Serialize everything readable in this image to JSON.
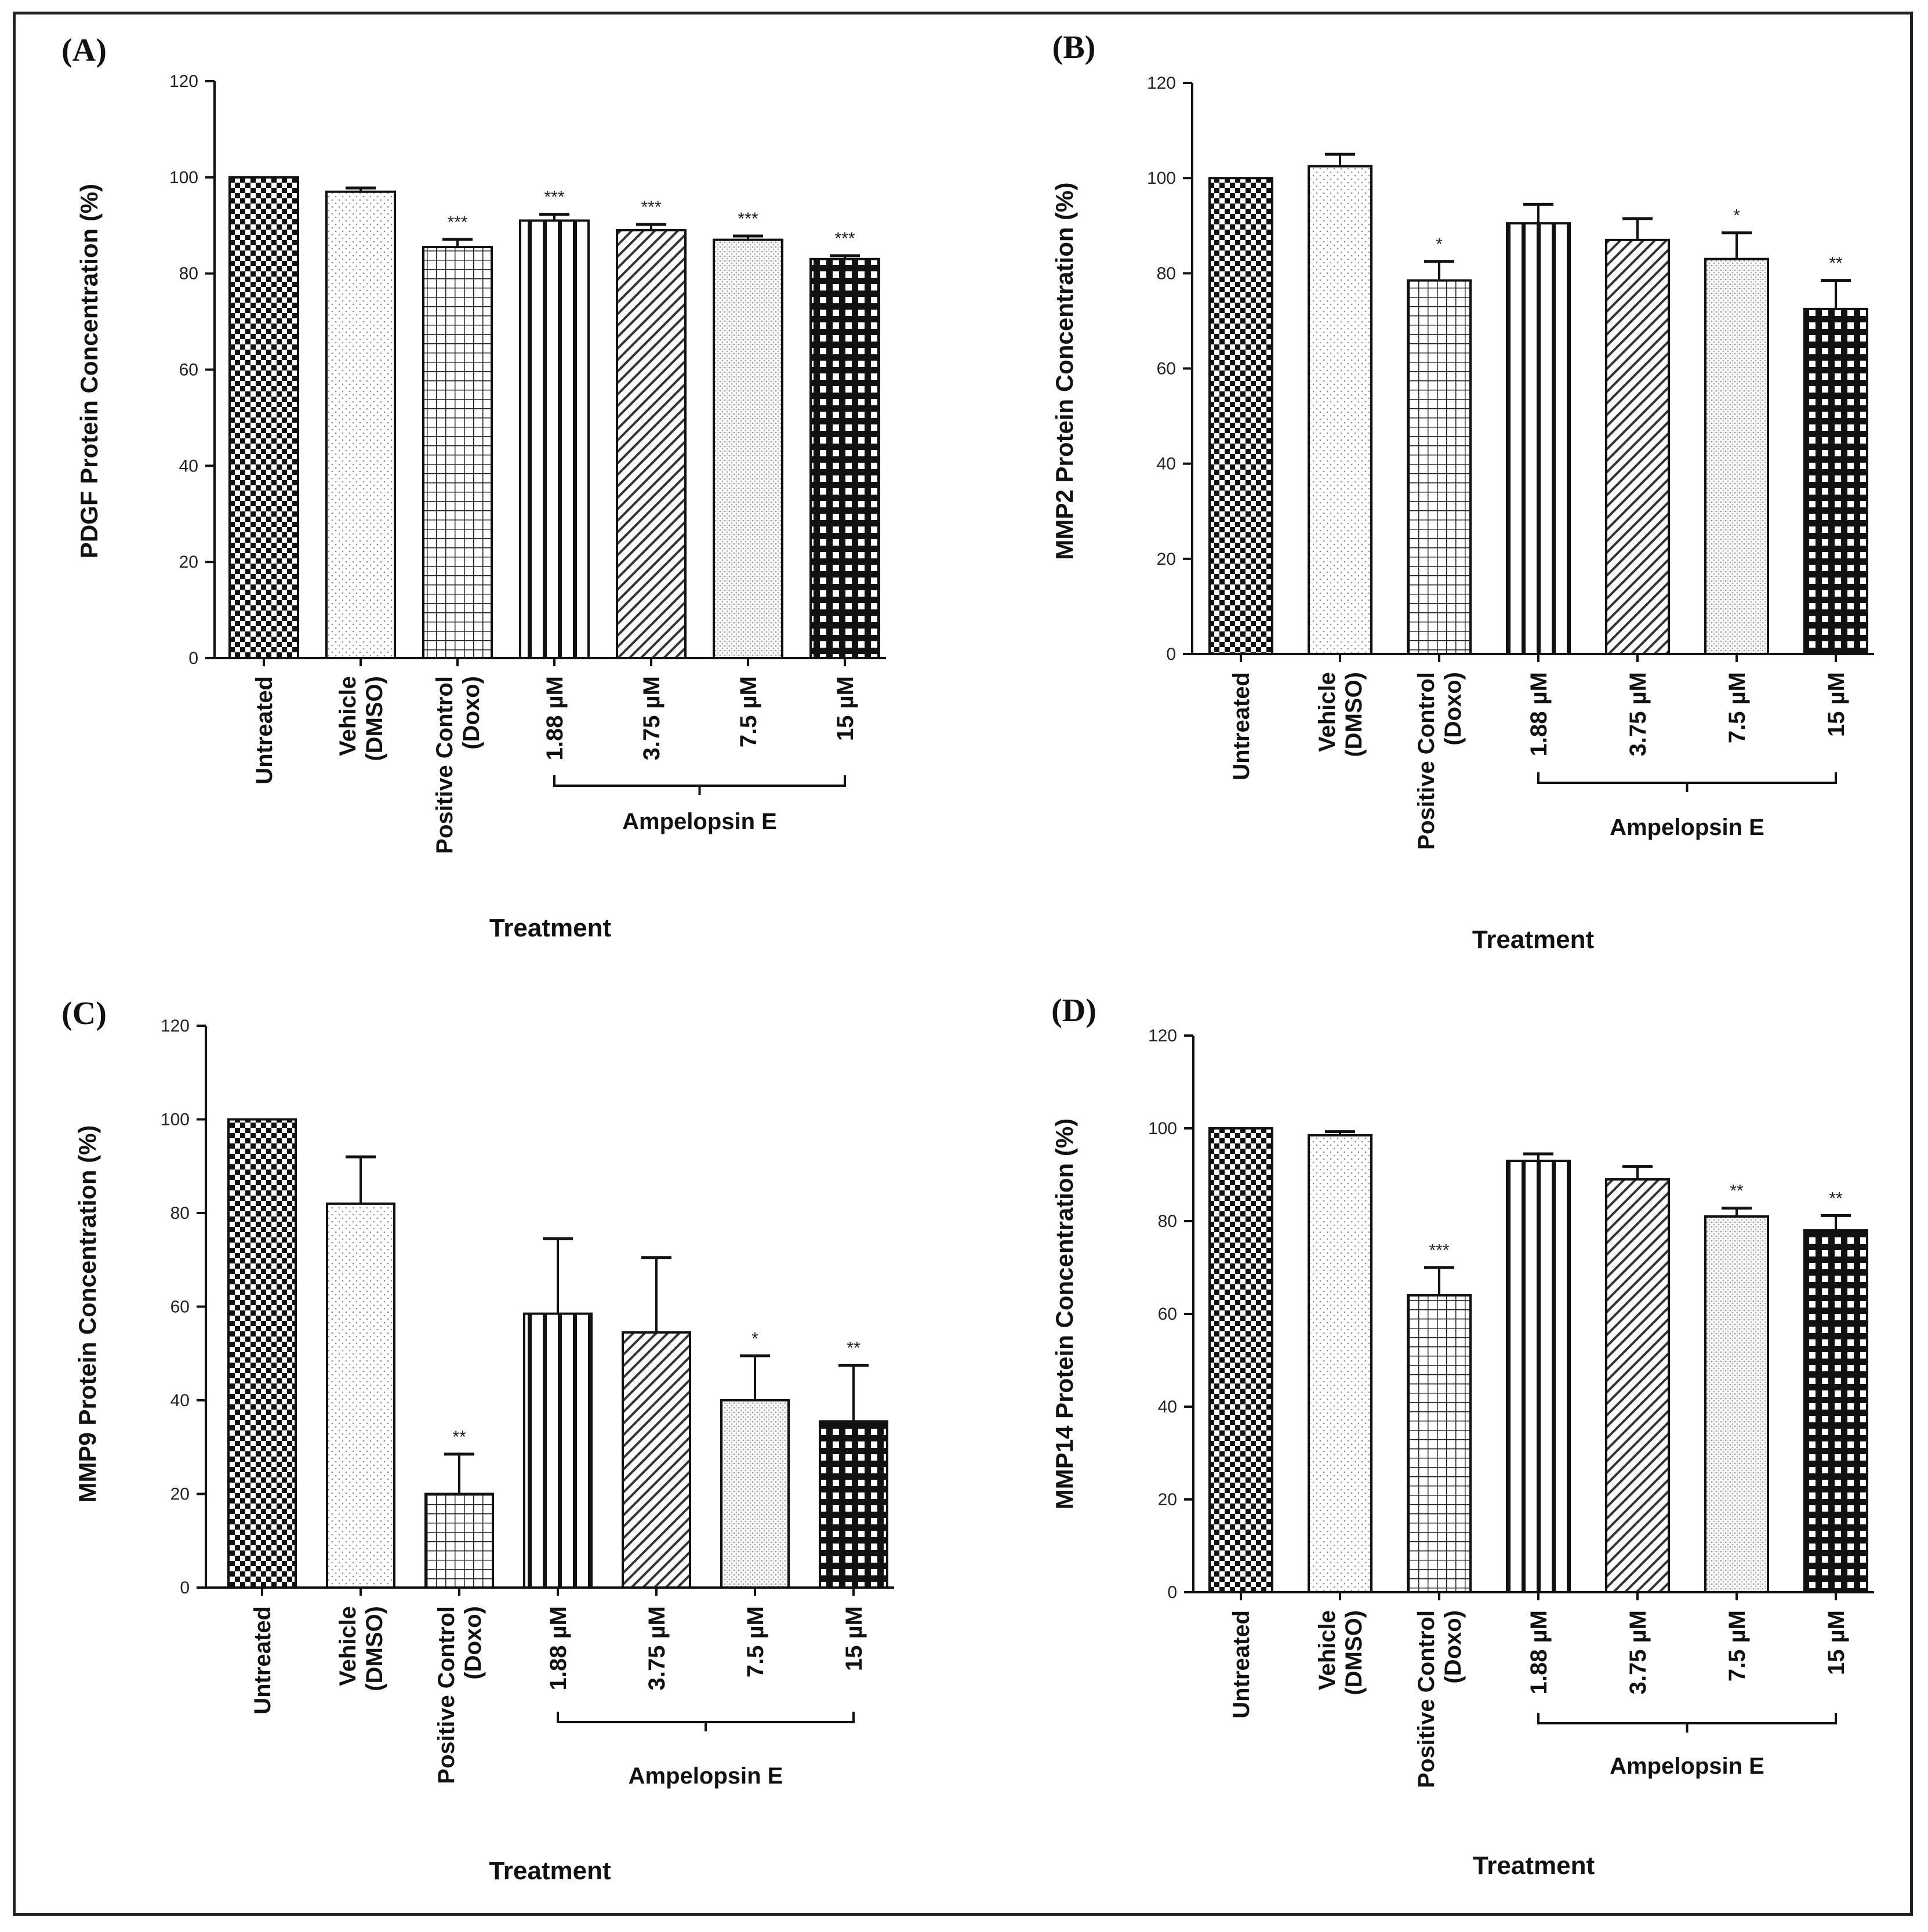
{
  "figure": {
    "colors": {
      "stroke": "#111111",
      "background": "#ffffff"
    },
    "panels": [
      {
        "panel_label": "(A)",
        "chart_data": {
          "type": "bar",
          "title": "",
          "ylabel": "PDGF Protein Concentration (%)",
          "xlabel": "Treatment",
          "ylim": [
            0,
            120
          ],
          "yticks": [
            0,
            20,
            40,
            60,
            80,
            100,
            120
          ],
          "group_label": "Ampelopsin E",
          "categories": [
            [
              "Untreated"
            ],
            [
              "Vehicle",
              "(DMSO)"
            ],
            [
              "Positive Control",
              "(Doxo)"
            ],
            [
              "1.88 µM"
            ],
            [
              "3.75 µM"
            ],
            [
              "7.5 µM"
            ],
            [
              "15 µM"
            ]
          ],
          "patterns": [
            "checker",
            "dots",
            "grid",
            "vlines",
            "diag",
            "fine",
            "bigcheck"
          ],
          "values": [
            100,
            97,
            85.5,
            91,
            89,
            87,
            83
          ],
          "errors": [
            0,
            0.8,
            1.6,
            1.3,
            1.2,
            0.8,
            0.7
          ],
          "significance": [
            "",
            "",
            "***",
            "***",
            "***",
            "***",
            "***"
          ]
        }
      },
      {
        "panel_label": "(B)",
        "chart_data": {
          "type": "bar",
          "title": "",
          "ylabel": "MMP2 Protein Concentration (%)",
          "xlabel": "Treatment",
          "ylim": [
            0,
            120
          ],
          "yticks": [
            0,
            20,
            40,
            60,
            80,
            100,
            120
          ],
          "group_label": "Ampelopsin E",
          "categories": [
            [
              "Untreated"
            ],
            [
              "Vehicle",
              "(DMSO)"
            ],
            [
              "Positive Control",
              "(Doxo)"
            ],
            [
              "1.88 µM"
            ],
            [
              "3.75 µM"
            ],
            [
              "7.5 µM"
            ],
            [
              "15 µM"
            ]
          ],
          "patterns": [
            "checker",
            "dots",
            "grid",
            "vlines",
            "diag",
            "fine",
            "bigcheck"
          ],
          "values": [
            100,
            102.5,
            78.5,
            90.5,
            87,
            83,
            72.5
          ],
          "errors": [
            0,
            2.5,
            4,
            4,
            4.5,
            5.5,
            6
          ],
          "significance": [
            "",
            "",
            "*",
            "",
            "",
            "*",
            "**"
          ]
        }
      },
      {
        "panel_label": "(C)",
        "chart_data": {
          "type": "bar",
          "title": "",
          "ylabel": "MMP9 Protein Concentration (%)",
          "xlabel": "Treatment",
          "ylim": [
            0,
            120
          ],
          "yticks": [
            0,
            20,
            40,
            60,
            80,
            100,
            120
          ],
          "group_label": "Ampelopsin E",
          "categories": [
            [
              "Untreated"
            ],
            [
              "Vehicle",
              "(DMSO)"
            ],
            [
              "Positive Control",
              "(Doxo)"
            ],
            [
              "1.88 µM"
            ],
            [
              "3.75 µM"
            ],
            [
              "7.5 µM"
            ],
            [
              "15 µM"
            ]
          ],
          "patterns": [
            "checker",
            "dots",
            "grid",
            "vlines",
            "diag",
            "fine",
            "bigcheck"
          ],
          "values": [
            100,
            82,
            20,
            58.5,
            54.5,
            40,
            35.5
          ],
          "errors": [
            0,
            10,
            8.5,
            16,
            16,
            9.5,
            12
          ],
          "significance": [
            "",
            "",
            "**",
            "",
            "",
            "*",
            "**"
          ]
        }
      },
      {
        "panel_label": "(D)",
        "chart_data": {
          "type": "bar",
          "title": "",
          "ylabel": "MMP14 Protein Concentration (%)",
          "xlabel": "Treatment",
          "ylim": [
            0,
            120
          ],
          "yticks": [
            0,
            20,
            40,
            60,
            80,
            100,
            120
          ],
          "group_label": "Ampelopsin E",
          "categories": [
            [
              "Untreated"
            ],
            [
              "Vehicle",
              "(DMSO)"
            ],
            [
              "Positive Control",
              "(Doxo)"
            ],
            [
              "1.88 µM"
            ],
            [
              "3.75 µM"
            ],
            [
              "7.5 µM"
            ],
            [
              "15 µM"
            ]
          ],
          "patterns": [
            "checker",
            "dots",
            "grid",
            "vlines",
            "diag",
            "fine",
            "bigcheck"
          ],
          "values": [
            100,
            98.5,
            64,
            93,
            89,
            81,
            78
          ],
          "errors": [
            0,
            0.8,
            6,
            1.5,
            2.8,
            1.8,
            3.2
          ],
          "significance": [
            "",
            "",
            "***",
            "",
            "",
            "**",
            "**"
          ]
        }
      }
    ]
  }
}
